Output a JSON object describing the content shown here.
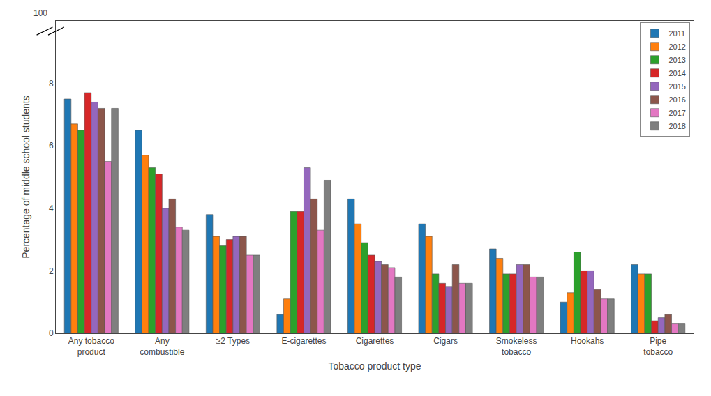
{
  "chart_data": {
    "type": "bar",
    "xlabel": "Tobacco product type",
    "ylabel": "Percentage of middle school students",
    "categories": [
      "Any tobacco\nproduct",
      "Any\ncombustible",
      "≥2 Types",
      "E-cigarettes",
      "Cigarettes",
      "Cigars",
      "Smokeless\ntobacco",
      "Hookahs",
      "Pipe\ntobacco"
    ],
    "series": [
      {
        "name": "2011",
        "values": [
          7.5,
          6.5,
          3.8,
          0.6,
          4.3,
          3.5,
          2.7,
          1.0,
          2.2
        ]
      },
      {
        "name": "2012",
        "values": [
          6.7,
          5.7,
          3.1,
          1.1,
          3.5,
          3.1,
          2.4,
          1.3,
          1.9
        ]
      },
      {
        "name": "2013",
        "values": [
          6.5,
          5.3,
          2.8,
          3.9,
          2.9,
          1.9,
          1.9,
          2.6,
          1.9
        ]
      },
      {
        "name": "2014",
        "values": [
          7.7,
          5.1,
          3.0,
          3.9,
          2.5,
          1.6,
          1.9,
          2.0,
          0.4
        ]
      },
      {
        "name": "2015",
        "values": [
          7.4,
          4.0,
          3.1,
          5.3,
          2.3,
          1.5,
          2.2,
          2.0,
          0.5
        ]
      },
      {
        "name": "2016",
        "values": [
          7.2,
          4.3,
          3.1,
          4.3,
          2.2,
          2.2,
          2.2,
          1.4,
          0.6
        ]
      },
      {
        "name": "2017",
        "values": [
          5.5,
          3.4,
          2.5,
          3.3,
          2.1,
          1.6,
          1.8,
          1.1,
          0.3
        ]
      },
      {
        "name": "2018",
        "values": [
          7.2,
          3.3,
          2.5,
          4.9,
          1.8,
          1.6,
          1.8,
          1.1,
          0.3
        ]
      }
    ],
    "ylim": [
      0,
      10
    ],
    "yticks": [
      0,
      2,
      4,
      6,
      8
    ],
    "annotations": [
      "100"
    ],
    "legend": "upper right",
    "grid": false
  }
}
